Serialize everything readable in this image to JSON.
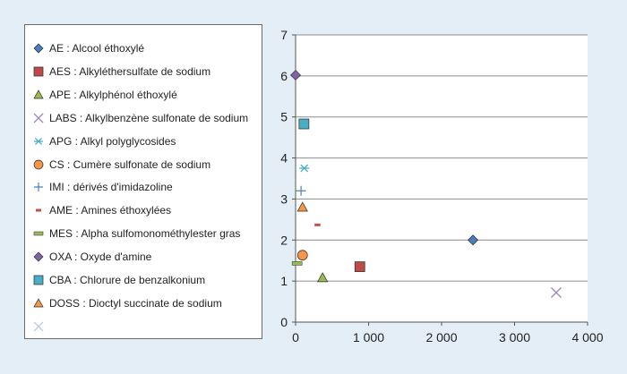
{
  "chart_data": {
    "type": "scatter",
    "title": "",
    "xlabel": "",
    "ylabel": "",
    "xlim": [
      0,
      4000
    ],
    "ylim": [
      0,
      7
    ],
    "x_ticks": [
      0,
      1000,
      2000,
      3000,
      4000
    ],
    "x_tick_labels": [
      "0",
      "1 000",
      "2 000",
      "3 000",
      "4 000"
    ],
    "y_ticks": [
      0,
      1,
      2,
      3,
      4,
      5,
      6,
      7
    ],
    "y_tick_labels": [
      "0",
      "1",
      "2",
      "3",
      "4",
      "5",
      "6",
      "7"
    ],
    "grid": "horizontal",
    "legend_position": "left",
    "series": [
      {
        "name": "AE : Alcool éthoxylé",
        "marker": "diamond",
        "color": "#4a7ebb",
        "points": [
          {
            "x": 2430,
            "y": 2.0
          }
        ]
      },
      {
        "name": "AES : Alkyléthersulfate de sodium",
        "marker": "square",
        "color": "#be4b48",
        "points": [
          {
            "x": 880,
            "y": 1.35
          }
        ]
      },
      {
        "name": "APE : Alkylphénol éthoxylé",
        "marker": "triangle",
        "color": "#98b954",
        "points": [
          {
            "x": 370,
            "y": 1.08
          }
        ]
      },
      {
        "name": "LABS : Alkylbenzène sulfonate de sodium",
        "marker": "x",
        "color": "#9c85c0",
        "points": [
          {
            "x": 3570,
            "y": 0.72
          }
        ]
      },
      {
        "name": "APG : Alkyl polyglycosides",
        "marker": "star",
        "color": "#46aac5",
        "points": [
          {
            "x": 120,
            "y": 3.75
          }
        ]
      },
      {
        "name": "CS : Cumère sulfonate de sodium",
        "marker": "circle",
        "color": "#f79646",
        "points": [
          {
            "x": 95,
            "y": 1.63
          }
        ]
      },
      {
        "name": "IMI : dérivés d'imidazoline",
        "marker": "plus",
        "color": "#4f81bd",
        "points": [
          {
            "x": 75,
            "y": 3.2
          }
        ]
      },
      {
        "name": "AME : Amines éthoxylées",
        "marker": "dash",
        "color": "#c0504d",
        "points": [
          {
            "x": 300,
            "y": 2.37
          }
        ]
      },
      {
        "name": "MES : Alpha sulfomonométhylester gras",
        "marker": "bar",
        "color": "#9bbb59",
        "points": [
          {
            "x": 20,
            "y": 1.43
          }
        ]
      },
      {
        "name": "OXA : Oxyde d'amine",
        "marker": "diamond",
        "color": "#8064a2",
        "points": [
          {
            "x": 0,
            "y": 6.02
          }
        ]
      },
      {
        "name": "CBA : Chlorure de benzalkonium",
        "marker": "square",
        "color": "#4bacc6",
        "points": [
          {
            "x": 115,
            "y": 4.83
          }
        ]
      },
      {
        "name": "DOSS : Dioctyl succinate de sodium",
        "marker": "triangle",
        "color": "#f79646",
        "points": [
          {
            "x": 95,
            "y": 2.8
          }
        ]
      },
      {
        "name": "",
        "marker": "x",
        "color": "#b8cce4",
        "points": []
      }
    ]
  }
}
